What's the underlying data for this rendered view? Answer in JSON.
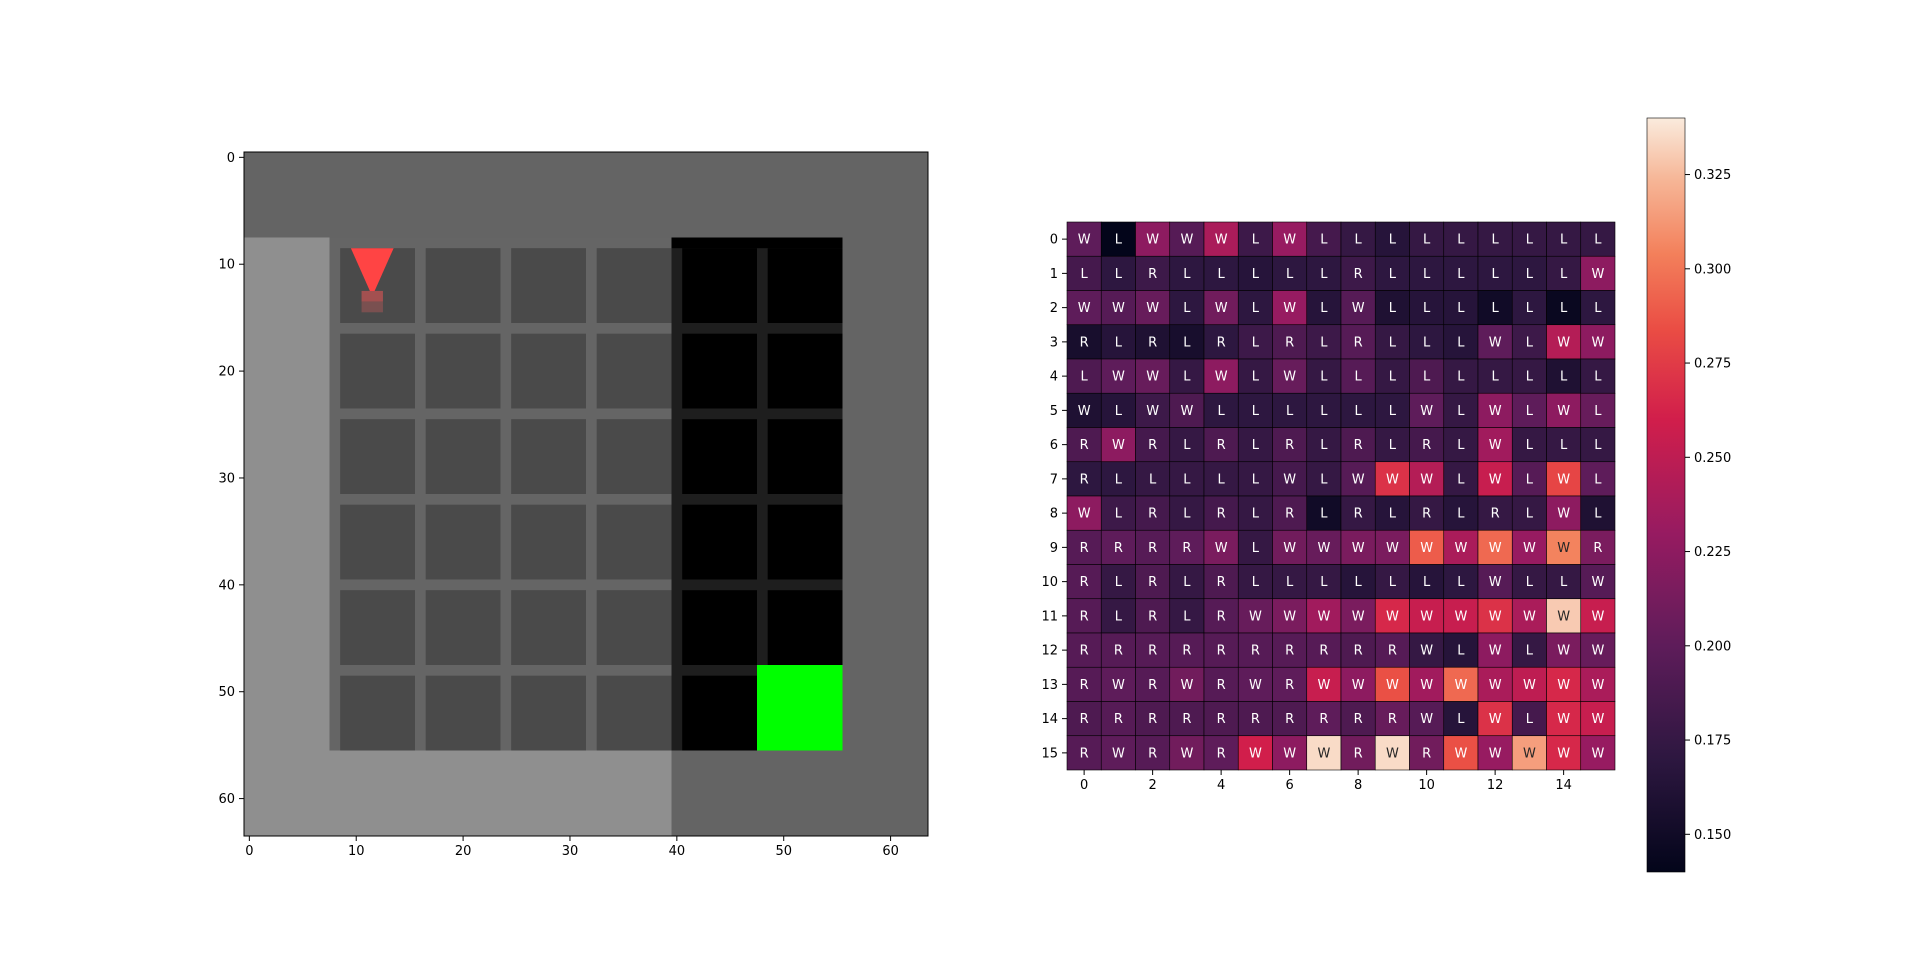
{
  "left_plot": {
    "x_ticks": [
      "0",
      "10",
      "20",
      "30",
      "40",
      "50",
      "60"
    ],
    "y_ticks": [
      "0",
      "10",
      "20",
      "30",
      "40",
      "50",
      "60"
    ],
    "colors": {
      "outer_wall": "#646464",
      "light_floor": "#8f8f8f",
      "floor_tile": "#4a4a4a",
      "grid_line": "#656565",
      "dark_region": "#000000",
      "dark_grid_line": "#1e1e1e",
      "goal": "#00ff00",
      "agent": "#ff4444"
    }
  },
  "chart_data": [
    {
      "type": "heatmap",
      "title": "",
      "xlabel": "",
      "ylabel": "",
      "x_ticks": [
        0,
        2,
        4,
        6,
        8,
        10,
        12,
        14
      ],
      "y_ticks": [
        0,
        1,
        2,
        3,
        4,
        5,
        6,
        7,
        8,
        9,
        10,
        11,
        12,
        13,
        14,
        15
      ],
      "colorbar": {
        "min": 0.14,
        "max": 0.34,
        "ticks": [
          "0.150",
          "0.175",
          "0.200",
          "0.225",
          "0.250",
          "0.275",
          "0.300",
          "0.325"
        ]
      },
      "cell_labels": [
        [
          "W",
          "L",
          "W",
          "W",
          "W",
          "L",
          "W",
          "L",
          "L",
          "L",
          "L",
          "L",
          "L",
          "L",
          "L",
          "L"
        ],
        [
          "L",
          "L",
          "R",
          "L",
          "L",
          "L",
          "L",
          "L",
          "R",
          "L",
          "L",
          "L",
          "L",
          "L",
          "L",
          "W"
        ],
        [
          "W",
          "W",
          "W",
          "L",
          "W",
          "L",
          "W",
          "L",
          "W",
          "L",
          "L",
          "L",
          "L",
          "L",
          "L",
          "L"
        ],
        [
          "R",
          "L",
          "R",
          "L",
          "R",
          "L",
          "R",
          "L",
          "R",
          "L",
          "L",
          "L",
          "W",
          "L",
          "W",
          "W"
        ],
        [
          "L",
          "W",
          "W",
          "L",
          "W",
          "L",
          "W",
          "L",
          "L",
          "L",
          "L",
          "L",
          "L",
          "L",
          "L",
          "L"
        ],
        [
          "W",
          "L",
          "W",
          "W",
          "L",
          "L",
          "L",
          "L",
          "L",
          "L",
          "W",
          "L",
          "W",
          "L",
          "W",
          "L"
        ],
        [
          "R",
          "W",
          "R",
          "L",
          "R",
          "L",
          "R",
          "L",
          "R",
          "L",
          "R",
          "L",
          "W",
          "L",
          "L",
          "L"
        ],
        [
          "R",
          "L",
          "L",
          "L",
          "L",
          "L",
          "W",
          "L",
          "W",
          "W",
          "W",
          "L",
          "W",
          "L",
          "W",
          "L"
        ],
        [
          "W",
          "L",
          "R",
          "L",
          "R",
          "L",
          "R",
          "L",
          "R",
          "L",
          "R",
          "L",
          "R",
          "L",
          "W",
          "L"
        ],
        [
          "R",
          "R",
          "R",
          "R",
          "W",
          "L",
          "W",
          "W",
          "W",
          "W",
          "W",
          "W",
          "W",
          "W",
          "W",
          "R"
        ],
        [
          "R",
          "L",
          "R",
          "L",
          "R",
          "L",
          "L",
          "L",
          "L",
          "L",
          "L",
          "L",
          "W",
          "L",
          "L",
          "W"
        ],
        [
          "R",
          "L",
          "R",
          "L",
          "R",
          "W",
          "W",
          "W",
          "W",
          "W",
          "W",
          "W",
          "W",
          "W",
          "W",
          "W"
        ],
        [
          "R",
          "R",
          "R",
          "R",
          "R",
          "R",
          "R",
          "R",
          "R",
          "R",
          "W",
          "L",
          "W",
          "L",
          "W",
          "W"
        ],
        [
          "R",
          "W",
          "R",
          "W",
          "R",
          "W",
          "R",
          "W",
          "W",
          "W",
          "W",
          "W",
          "W",
          "W",
          "W",
          "W"
        ],
        [
          "R",
          "R",
          "R",
          "R",
          "R",
          "R",
          "R",
          "R",
          "R",
          "R",
          "W",
          "L",
          "W",
          "L",
          "W",
          "W"
        ],
        [
          "R",
          "W",
          "R",
          "W",
          "R",
          "W",
          "W",
          "W",
          "R",
          "W",
          "R",
          "W",
          "W",
          "W",
          "W",
          "W"
        ]
      ],
      "values": [
        [
          0.2,
          0.14,
          0.225,
          0.195,
          0.24,
          0.18,
          0.23,
          0.185,
          0.175,
          0.165,
          0.175,
          0.175,
          0.175,
          0.175,
          0.175,
          0.175
        ],
        [
          0.185,
          0.17,
          0.18,
          0.17,
          0.17,
          0.165,
          0.17,
          0.17,
          0.18,
          0.17,
          0.17,
          0.17,
          0.17,
          0.17,
          0.175,
          0.225
        ],
        [
          0.2,
          0.195,
          0.205,
          0.17,
          0.21,
          0.17,
          0.23,
          0.165,
          0.195,
          0.16,
          0.165,
          0.165,
          0.15,
          0.17,
          0.145,
          0.17
        ],
        [
          0.155,
          0.165,
          0.16,
          0.155,
          0.17,
          0.18,
          0.19,
          0.18,
          0.195,
          0.175,
          0.17,
          0.165,
          0.2,
          0.18,
          0.245,
          0.225
        ],
        [
          0.19,
          0.2,
          0.205,
          0.175,
          0.225,
          0.175,
          0.205,
          0.175,
          0.195,
          0.175,
          0.19,
          0.175,
          0.175,
          0.175,
          0.16,
          0.175
        ],
        [
          0.16,
          0.165,
          0.18,
          0.19,
          0.17,
          0.17,
          0.17,
          0.17,
          0.17,
          0.17,
          0.2,
          0.175,
          0.225,
          0.2,
          0.225,
          0.205
        ],
        [
          0.19,
          0.225,
          0.185,
          0.175,
          0.19,
          0.175,
          0.19,
          0.175,
          0.19,
          0.175,
          0.185,
          0.175,
          0.235,
          0.175,
          0.175,
          0.175
        ],
        [
          0.17,
          0.17,
          0.175,
          0.175,
          0.175,
          0.175,
          0.185,
          0.175,
          0.195,
          0.27,
          0.245,
          0.175,
          0.255,
          0.195,
          0.28,
          0.2
        ],
        [
          0.225,
          0.18,
          0.185,
          0.175,
          0.185,
          0.175,
          0.19,
          0.15,
          0.175,
          0.165,
          0.175,
          0.165,
          0.175,
          0.175,
          0.225,
          0.16
        ],
        [
          0.195,
          0.2,
          0.195,
          0.2,
          0.215,
          0.175,
          0.21,
          0.205,
          0.215,
          0.215,
          0.29,
          0.24,
          0.295,
          0.23,
          0.305,
          0.215
        ],
        [
          0.195,
          0.175,
          0.19,
          0.175,
          0.19,
          0.175,
          0.175,
          0.175,
          0.165,
          0.175,
          0.165,
          0.17,
          0.195,
          0.175,
          0.175,
          0.195
        ],
        [
          0.195,
          0.175,
          0.19,
          0.175,
          0.195,
          0.205,
          0.215,
          0.235,
          0.215,
          0.265,
          0.255,
          0.255,
          0.27,
          0.24,
          0.33,
          0.255
        ],
        [
          0.195,
          0.195,
          0.195,
          0.195,
          0.195,
          0.195,
          0.195,
          0.195,
          0.19,
          0.195,
          0.175,
          0.165,
          0.225,
          0.175,
          0.215,
          0.205
        ],
        [
          0.195,
          0.2,
          0.195,
          0.21,
          0.195,
          0.2,
          0.2,
          0.255,
          0.225,
          0.285,
          0.235,
          0.295,
          0.24,
          0.25,
          0.265,
          0.24
        ],
        [
          0.19,
          0.195,
          0.19,
          0.19,
          0.19,
          0.19,
          0.19,
          0.2,
          0.19,
          0.205,
          0.195,
          0.165,
          0.27,
          0.185,
          0.265,
          0.255
        ],
        [
          0.195,
          0.2,
          0.195,
          0.21,
          0.2,
          0.26,
          0.225,
          0.335,
          0.21,
          0.335,
          0.21,
          0.285,
          0.23,
          0.315,
          0.265,
          0.23
        ]
      ]
    }
  ]
}
